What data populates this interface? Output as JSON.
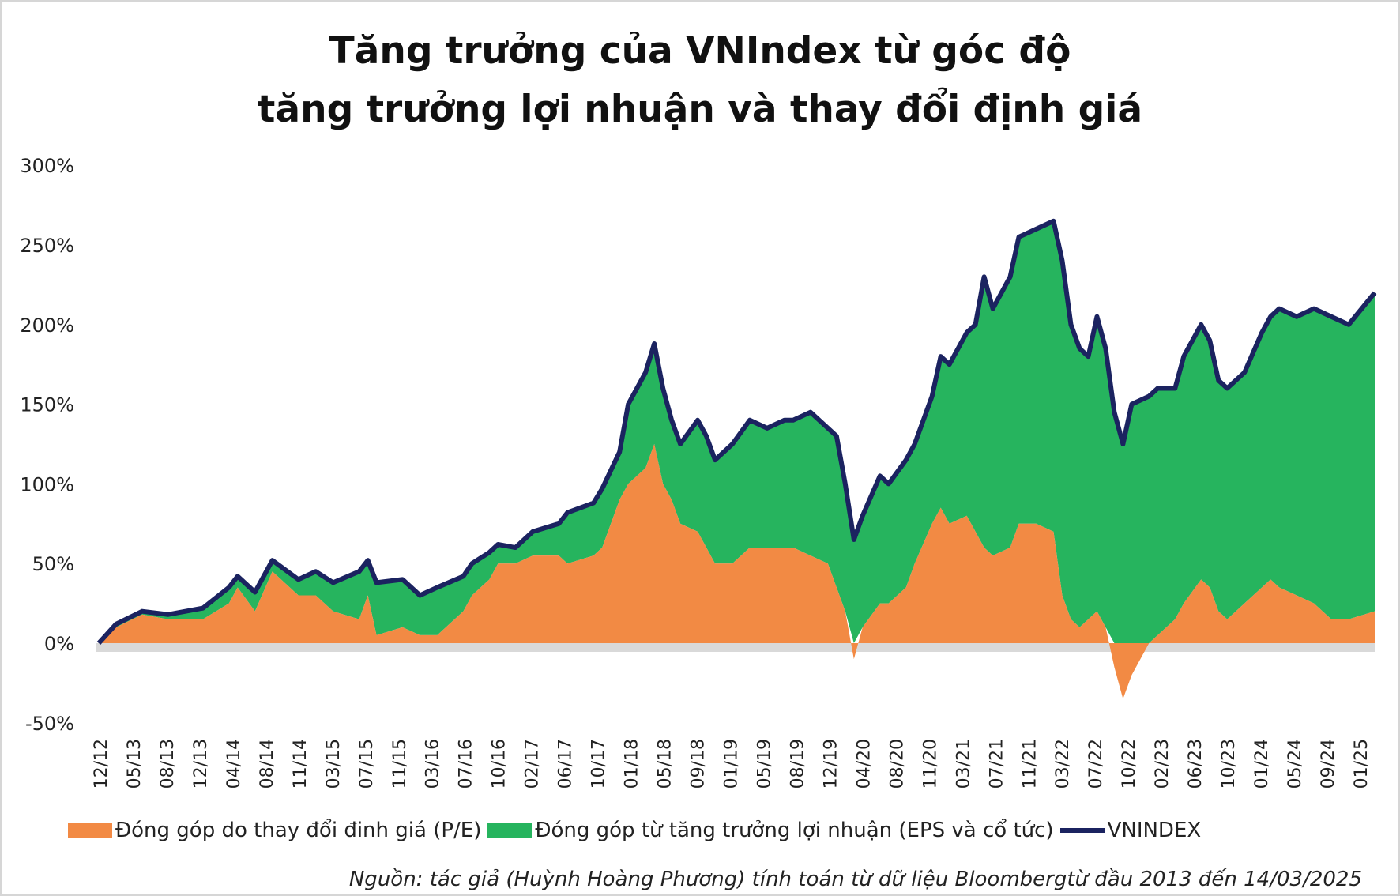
{
  "colors": {
    "pe": "#f28a44",
    "eps": "#26b45e",
    "vnindex": "#1b2360",
    "zero_band": "#d9d9d9"
  },
  "chart_data": {
    "type": "area",
    "title_line1": "Tăng trưởng của VNIndex từ góc độ",
    "title_line2": "tăng trưởng lợi nhuận và thay đổi định giá",
    "xlabel": "",
    "ylabel": "",
    "ylim": [
      -50,
      300
    ],
    "y_ticks": [
      "300%",
      "250%",
      "200%",
      "150%",
      "100%",
      "50%",
      "0%",
      "-50%"
    ],
    "y_tick_values": [
      300,
      250,
      200,
      150,
      100,
      50,
      0,
      -50
    ],
    "x_ticks": [
      "12/12",
      "05/13",
      "08/13",
      "12/13",
      "04/14",
      "08/14",
      "11/14",
      "03/15",
      "07/15",
      "11/15",
      "03/16",
      "07/16",
      "10/16",
      "02/17",
      "06/17",
      "10/17",
      "01/18",
      "05/18",
      "09/18",
      "01/19",
      "05/19",
      "08/19",
      "12/19",
      "04/20",
      "08/20",
      "11/20",
      "03/21",
      "07/21",
      "11/21",
      "03/22",
      "07/22",
      "10/22",
      "02/23",
      "06/23",
      "10/23",
      "01/24",
      "05/24",
      "09/24",
      "01/25"
    ],
    "x_unit": "months since 12/2012",
    "x_range": [
      0,
      147
    ],
    "legend": [
      "Đóng góp do thay đổi đinh giá (P/E)",
      "Đóng góp từ tăng trưởng lợi nhuận (EPS và cổ tức)",
      "VNINDEX"
    ],
    "legend_position": "bottom",
    "grid": false,
    "series": {
      "t": [
        0,
        2,
        5,
        8,
        12,
        15,
        16,
        18,
        20,
        23,
        25,
        27,
        30,
        31,
        32,
        35,
        37,
        39,
        42,
        43,
        45,
        46,
        48,
        50,
        53,
        54,
        57,
        58,
        60,
        61,
        63,
        64,
        65,
        66,
        67,
        69,
        70,
        71,
        73,
        75,
        77,
        79,
        80,
        82,
        84,
        85,
        86,
        87,
        88,
        90,
        91,
        93,
        94,
        96,
        97,
        98,
        100,
        101,
        102,
        103,
        105,
        106,
        108,
        110,
        111,
        112,
        113,
        114,
        115,
        116,
        117,
        118,
        119,
        121,
        122,
        124,
        125,
        127,
        128,
        129,
        130,
        132,
        134,
        135,
        136,
        138,
        140,
        142,
        144,
        147
      ],
      "vnindex": [
        0,
        12,
        20,
        18,
        22,
        35,
        42,
        32,
        52,
        40,
        45,
        38,
        45,
        52,
        38,
        40,
        30,
        35,
        42,
        50,
        57,
        62,
        60,
        70,
        75,
        82,
        88,
        97,
        120,
        150,
        170,
        188,
        160,
        140,
        125,
        140,
        130,
        115,
        125,
        140,
        135,
        140,
        140,
        145,
        135,
        130,
        100,
        65,
        80,
        105,
        100,
        115,
        125,
        155,
        180,
        175,
        195,
        200,
        230,
        210,
        230,
        255,
        260,
        265,
        240,
        200,
        185,
        180,
        205,
        185,
        145,
        125,
        150,
        155,
        160,
        160,
        180,
        200,
        190,
        165,
        160,
        170,
        195,
        205,
        210,
        205,
        210,
        205,
        200,
        220
      ],
      "pe": [
        0,
        10,
        18,
        15,
        15,
        25,
        35,
        20,
        45,
        30,
        30,
        20,
        15,
        30,
        5,
        10,
        5,
        5,
        20,
        30,
        40,
        50,
        50,
        55,
        55,
        50,
        55,
        60,
        90,
        100,
        110,
        125,
        100,
        90,
        75,
        70,
        60,
        50,
        50,
        60,
        60,
        60,
        60,
        55,
        50,
        35,
        20,
        -10,
        10,
        25,
        25,
        35,
        50,
        75,
        85,
        75,
        80,
        70,
        60,
        55,
        60,
        75,
        75,
        70,
        30,
        15,
        10,
        15,
        20,
        10,
        -15,
        -35,
        -20,
        0,
        5,
        15,
        25,
        40,
        35,
        20,
        15,
        25,
        35,
        40,
        35,
        30,
        25,
        15,
        15,
        20
      ]
    },
    "source": "Nguồn: tác giả (Huỳnh Hoàng Phương) tính toán từ dữ liệu Bloombergtừ đầu 2013 đến 14/03/2025"
  }
}
